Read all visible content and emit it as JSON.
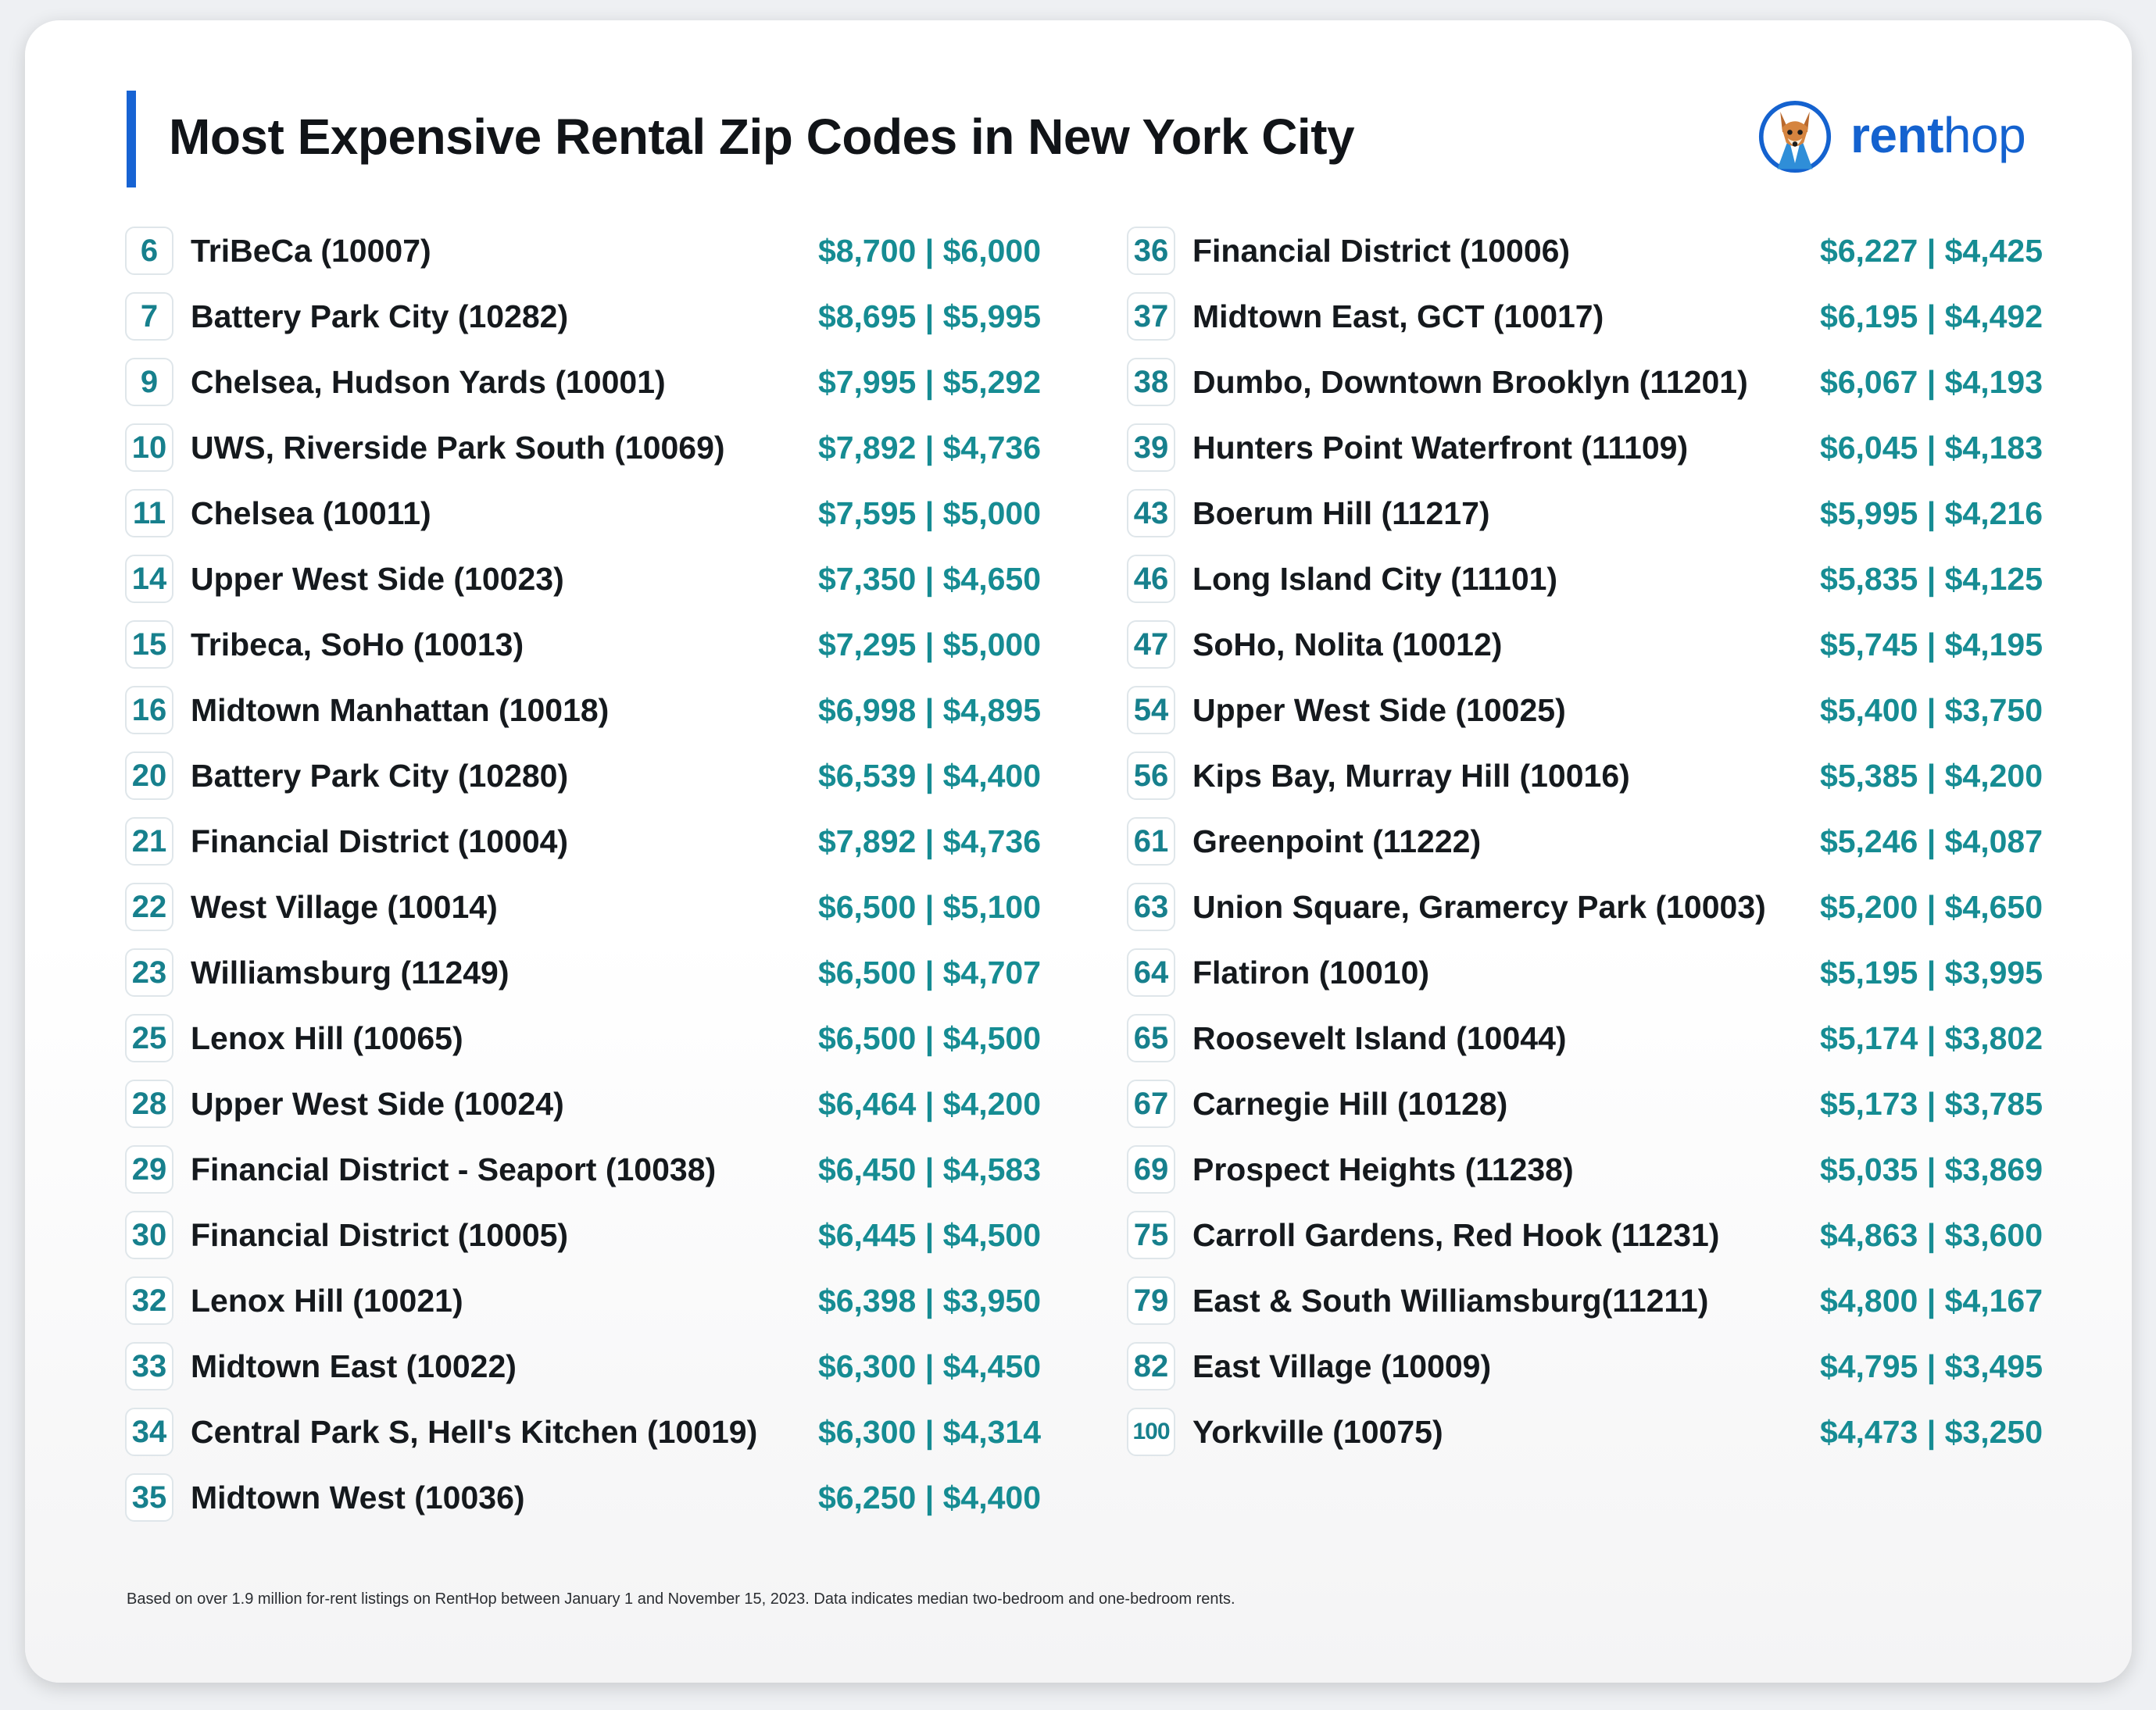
{
  "title": "Most Expensive Rental Zip Codes in New York City",
  "brand": {
    "rent": "rent",
    "hop": "hop",
    "icon": "fox-mascot-icon",
    "color": "#1462cf"
  },
  "colors": {
    "accent": "#1763d3",
    "price": "#168c93",
    "rank": "#17808d"
  },
  "left_column": [
    {
      "rank": "6",
      "name": "TriBeCa (10007)",
      "price": "$8,700 | $6,000"
    },
    {
      "rank": "7",
      "name": "Battery Park City (10282)",
      "price": "$8,695 | $5,995"
    },
    {
      "rank": "9",
      "name": "Chelsea, Hudson Yards (10001)",
      "price": "$7,995 | $5,292"
    },
    {
      "rank": "10",
      "name": "UWS, Riverside Park South (10069)",
      "price": "$7,892 | $4,736"
    },
    {
      "rank": "11",
      "name": "Chelsea (10011)",
      "price": "$7,595 | $5,000"
    },
    {
      "rank": "14",
      "name": "Upper West Side (10023)",
      "price": "$7,350 | $4,650"
    },
    {
      "rank": "15",
      "name": "Tribeca, SoHo (10013)",
      "price": "$7,295 | $5,000"
    },
    {
      "rank": "16",
      "name": "Midtown Manhattan (10018)",
      "price": "$6,998 | $4,895"
    },
    {
      "rank": "20",
      "name": "Battery Park City (10280)",
      "price": "$6,539 | $4,400"
    },
    {
      "rank": "21",
      "name": "Financial District (10004)",
      "price": "$7,892 | $4,736"
    },
    {
      "rank": "22",
      "name": "West Village (10014)",
      "price": "$6,500 | $5,100"
    },
    {
      "rank": "23",
      "name": "Williamsburg (11249)",
      "price": "$6,500 | $4,707"
    },
    {
      "rank": "25",
      "name": "Lenox Hill (10065)",
      "price": "$6,500 | $4,500"
    },
    {
      "rank": "28",
      "name": "Upper West Side (10024)",
      "price": "$6,464 | $4,200"
    },
    {
      "rank": "29",
      "name": "Financial District - Seaport (10038)",
      "price": "$6,450 | $4,583"
    },
    {
      "rank": "30",
      "name": "Financial District (10005)",
      "price": "$6,445 | $4,500"
    },
    {
      "rank": "32",
      "name": "Lenox Hill (10021)",
      "price": "$6,398 | $3,950"
    },
    {
      "rank": "33",
      "name": "Midtown East (10022)",
      "price": "$6,300 | $4,450"
    },
    {
      "rank": "34",
      "name": "Central Park S, Hell's Kitchen (10019)",
      "price": "$6,300 | $4,314"
    },
    {
      "rank": "35",
      "name": "Midtown West (10036)",
      "price": "$6,250 | $4,400"
    }
  ],
  "right_column": [
    {
      "rank": "36",
      "name": "Financial District (10006)",
      "price": "$6,227 | $4,425"
    },
    {
      "rank": "37",
      "name": "Midtown East, GCT (10017)",
      "price": "$6,195 | $4,492"
    },
    {
      "rank": "38",
      "name": "Dumbo, Downtown Brooklyn (11201)",
      "price": "$6,067 | $4,193"
    },
    {
      "rank": "39",
      "name": "Hunters Point Waterfront (11109)",
      "price": "$6,045 | $4,183"
    },
    {
      "rank": "43",
      "name": "Boerum Hill (11217)",
      "price": "$5,995 | $4,216"
    },
    {
      "rank": "46",
      "name": "Long Island City (11101)",
      "price": "$5,835 | $4,125"
    },
    {
      "rank": "47",
      "name": "SoHo, Nolita (10012)",
      "price": "$5,745 | $4,195"
    },
    {
      "rank": "54",
      "name": "Upper West Side (10025)",
      "price": "$5,400 | $3,750"
    },
    {
      "rank": "56",
      "name": "Kips Bay, Murray Hill (10016)",
      "price": "$5,385 | $4,200"
    },
    {
      "rank": "61",
      "name": "Greenpoint (11222)",
      "price": "$5,246 | $4,087"
    },
    {
      "rank": "63",
      "name": "Union Square, Gramercy Park (10003)",
      "price": "$5,200 | $4,650"
    },
    {
      "rank": "64",
      "name": "Flatiron (10010)",
      "price": "$5,195 | $3,995"
    },
    {
      "rank": "65",
      "name": "Roosevelt Island (10044)",
      "price": "$5,174 | $3,802"
    },
    {
      "rank": "67",
      "name": "Carnegie Hill (10128)",
      "price": "$5,173 | $3,785"
    },
    {
      "rank": "69",
      "name": "Prospect Heights (11238)",
      "price": "$5,035 | $3,869"
    },
    {
      "rank": "75",
      "name": "Carroll Gardens, Red Hook (11231)",
      "price": "$4,863 | $3,600"
    },
    {
      "rank": "79",
      "name": "East & South Williamsburg(11211)",
      "price": "$4,800 | $4,167"
    },
    {
      "rank": "82",
      "name": "East Village (10009)",
      "price": "$4,795 | $3,495"
    },
    {
      "rank": "100",
      "name": "Yorkville (10075)",
      "price": "$4,473 | $3,250"
    }
  ],
  "footnote": "Based on over 1.9 million for-rent listings on RentHop between January 1 and November 15, 2023. Data indicates median two-bedroom and one-bedroom rents."
}
